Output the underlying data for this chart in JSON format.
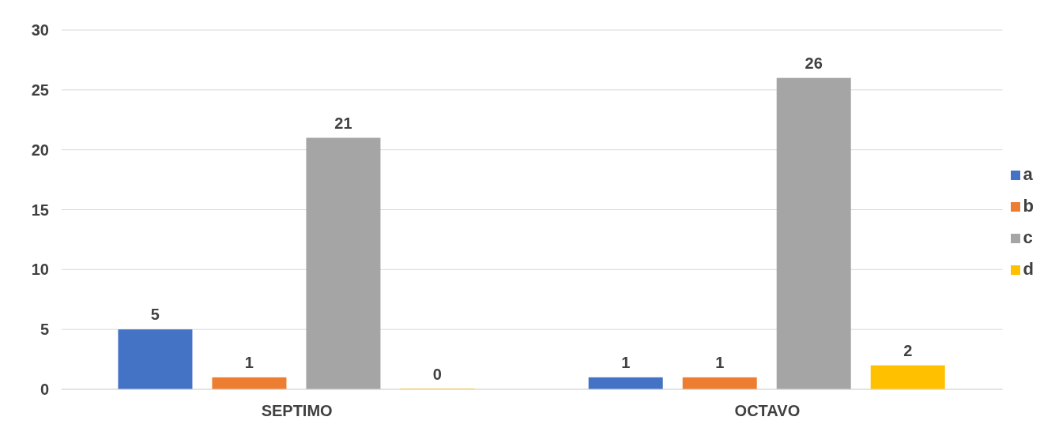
{
  "chart_data": {
    "type": "bar",
    "categories": [
      "SEPTIMO",
      "OCTAVO"
    ],
    "series": [
      {
        "name": "a",
        "color": "#4472c4",
        "values": [
          5,
          1
        ]
      },
      {
        "name": "b",
        "color": "#ed7d31",
        "values": [
          1,
          1
        ]
      },
      {
        "name": "c",
        "color": "#a5a5a5",
        "values": [
          21,
          26
        ]
      },
      {
        "name": "d",
        "color": "#ffc000",
        "values": [
          0,
          2
        ]
      }
    ],
    "ylim": [
      0,
      30
    ],
    "yticks": [
      0,
      5,
      10,
      15,
      20,
      25,
      30
    ],
    "grid": "y",
    "legend": "right",
    "data_labels": true
  }
}
